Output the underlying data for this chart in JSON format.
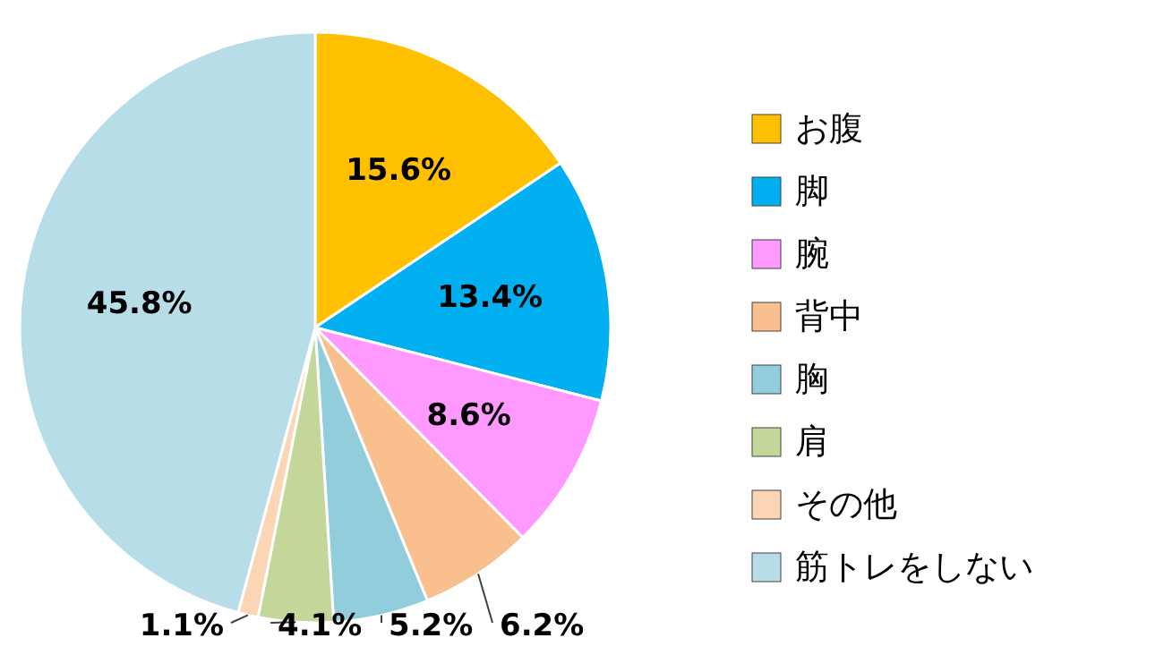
{
  "chart_data": {
    "type": "pie",
    "categories": [
      "お腹",
      "脚",
      "腕",
      "背中",
      "胸",
      "肩",
      "その他",
      "筋トレをしない"
    ],
    "values": [
      15.6,
      13.4,
      8.6,
      6.2,
      5.2,
      4.1,
      1.1,
      45.8
    ],
    "colors": [
      "#ffc000",
      "#00b0f0",
      "#ff99ff",
      "#fabf8f",
      "#92cddc",
      "#c4d79b",
      "#fcd5b4",
      "#b7dee8"
    ],
    "value_labels": [
      "15.6%",
      "13.4%",
      "8.6%",
      "6.2%",
      "5.2%",
      "4.1%",
      "1.1%",
      "45.8%"
    ],
    "legend": "right"
  }
}
